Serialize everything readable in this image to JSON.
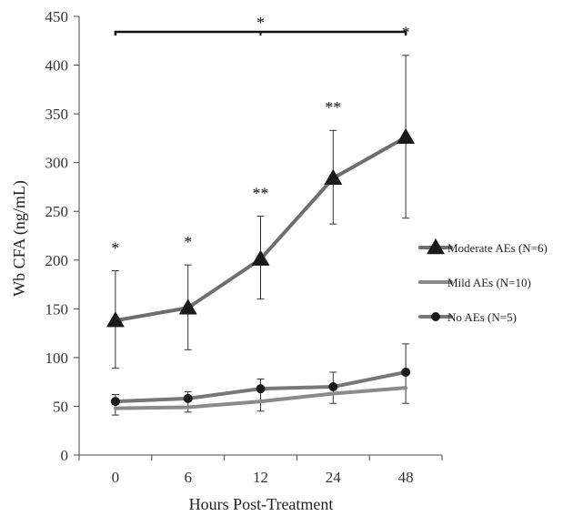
{
  "chart_data": {
    "type": "line",
    "xlabel": "Hours Post-Treatment",
    "ylabel": "Wb CFA (ng/mL)",
    "categories": [
      "0",
      "6",
      "12",
      "24",
      "48"
    ],
    "ylim": [
      0,
      450
    ],
    "yticks": [
      0,
      50,
      100,
      150,
      200,
      250,
      300,
      350,
      400,
      450
    ],
    "grid": false,
    "legend_position": "right",
    "series": [
      {
        "name": "Moderate AEs (N=6)",
        "marker": "triangle",
        "color": "#6e6e6e",
        "values": [
          138,
          151,
          201,
          284,
          326
        ],
        "error_upper": [
          189,
          195,
          245,
          333,
          410
        ],
        "error_lower": [
          89,
          108,
          160,
          237,
          243
        ]
      },
      {
        "name": "Mild AEs (N=10)",
        "marker": "none",
        "color": "#8a8a8a",
        "values": [
          48,
          49,
          55,
          63,
          69
        ],
        "error_upper": [],
        "error_lower": []
      },
      {
        "name": "No AEs (N=5)",
        "marker": "circle",
        "color": "#777777",
        "values": [
          55,
          58,
          68,
          70,
          85
        ],
        "error_upper": [
          62,
          65,
          78,
          85,
          114
        ],
        "error_lower": [
          41,
          44,
          45,
          53,
          53
        ]
      }
    ],
    "annotations": [
      {
        "text": "*",
        "x": "0",
        "y": 207
      },
      {
        "text": "*",
        "x": "6",
        "y": 213
      },
      {
        "text": "**",
        "x": "12",
        "y": 263
      },
      {
        "text": "**",
        "x": "24",
        "y": 351
      },
      {
        "text": "*",
        "x": "48",
        "y": 428
      }
    ],
    "bracket": {
      "text": "*",
      "from": "0",
      "to": "48"
    }
  }
}
